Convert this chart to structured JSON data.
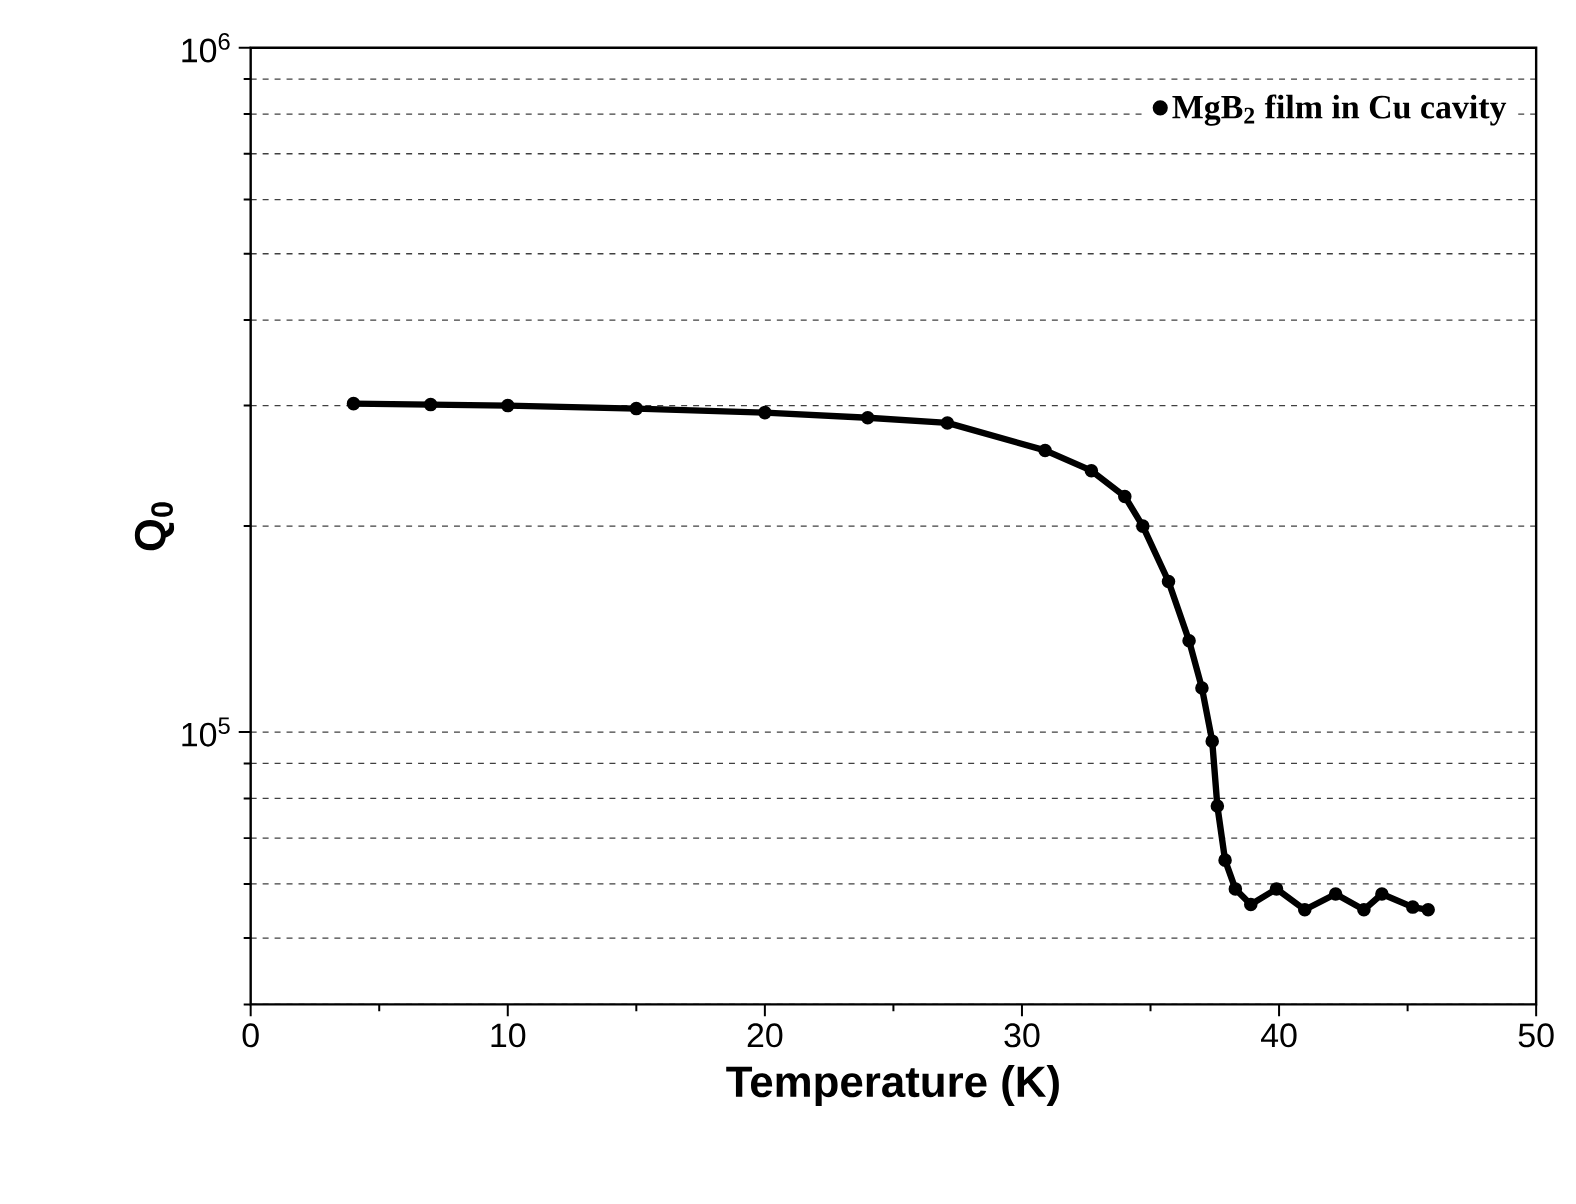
{
  "chart_data": {
    "type": "line",
    "xlabel": "Temperature (K)",
    "ylabel": "Q$_{0}$",
    "log": "y",
    "grid": "y",
    "legend": "top right",
    "marker": "circle",
    "xlim": [
      0,
      50
    ],
    "xticks": [
      0,
      10,
      20,
      30,
      40,
      50
    ],
    "ylim": [
      40000,
      1000000
    ],
    "yticks": [
      {
        "value": 100000,
        "label": "10$^{5}$"
      },
      {
        "value": 1000000,
        "label": "10$^{6}$"
      }
    ],
    "series": [
      {
        "name": "MgB$_{2}$ film in Cu cavity",
        "color": "#000000",
        "x": [
          4,
          7,
          10,
          15,
          20,
          24,
          27.1,
          30.9,
          32.7,
          34.0,
          34.7,
          35.7,
          36.5,
          37.0,
          37.4,
          37.6,
          37.9,
          38.3,
          38.9,
          39.9,
          41.0,
          42.2,
          43.3,
          44.0,
          45.2,
          45.8
        ],
        "values": [
          302000,
          301000,
          300000,
          297000,
          293000,
          288000,
          283000,
          258000,
          241000,
          221000,
          200000,
          166000,
          136000,
          116000,
          97000,
          78000,
          65000,
          59000,
          56000,
          59000,
          55000,
          58000,
          55000,
          58000,
          55500,
          55000
        ]
      }
    ]
  }
}
